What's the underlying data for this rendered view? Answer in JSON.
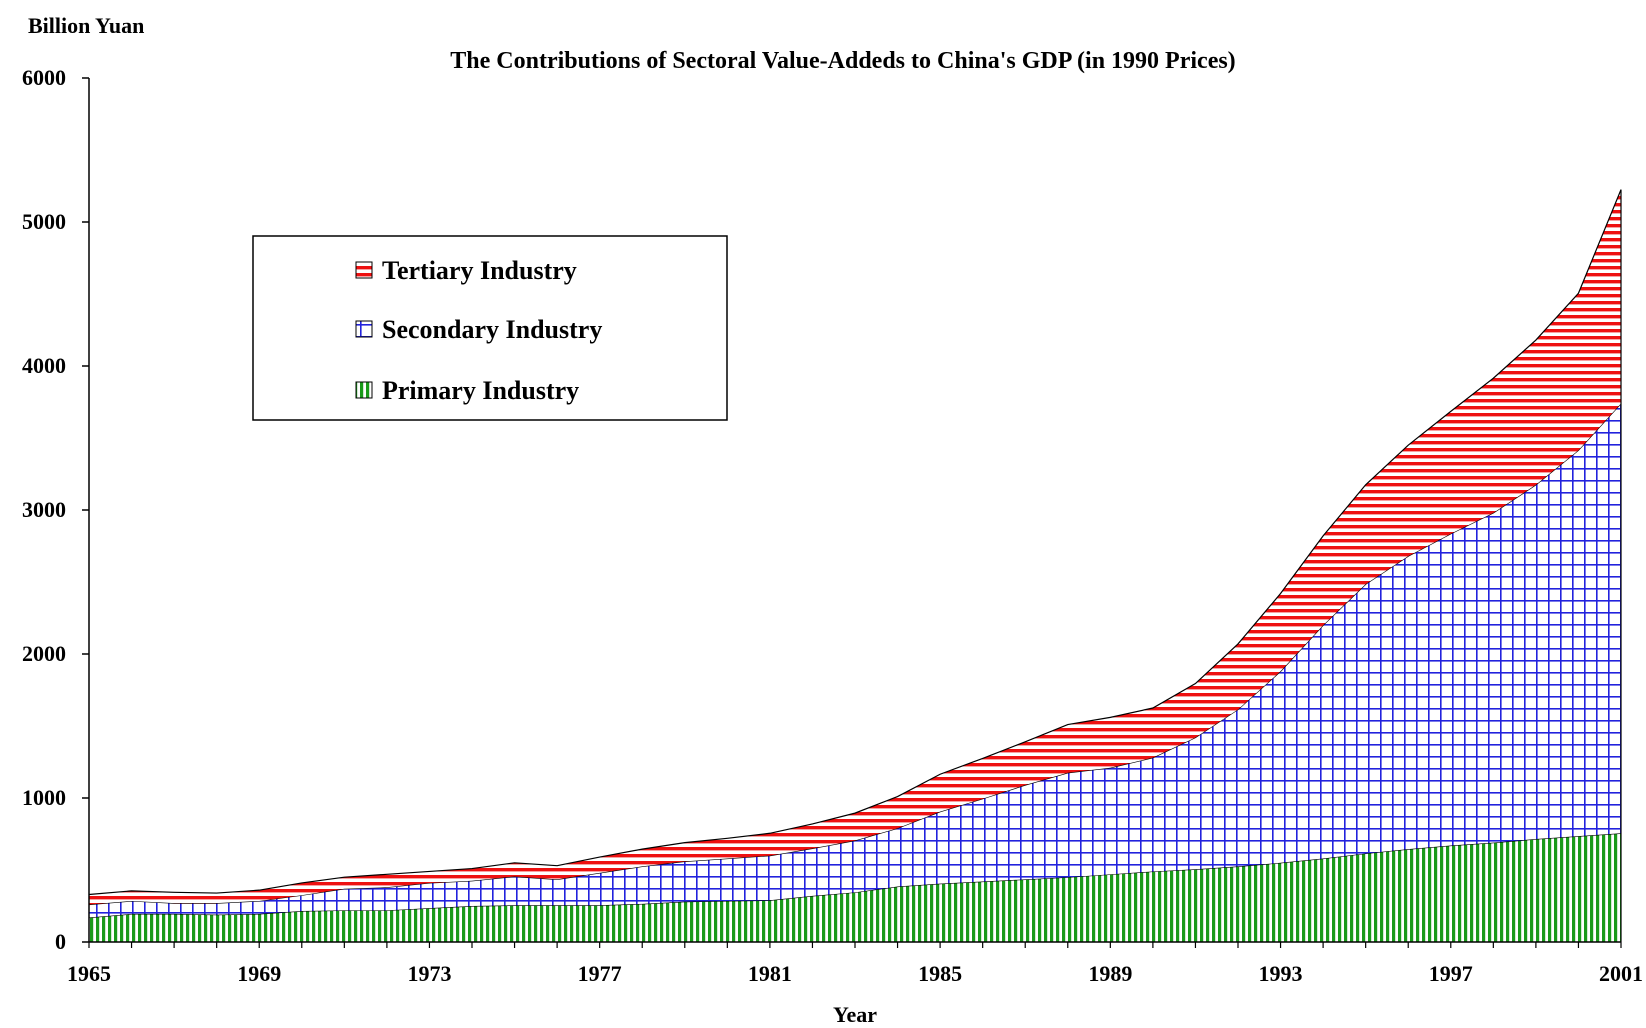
{
  "chart_data": {
    "type": "area",
    "stacked": true,
    "title": "The Contributions of Sectoral Value-Addeds to China's GDP (in 1990 Prices)",
    "xlabel": "Year",
    "ylabel": "Billion Yuan",
    "xlim": [
      1965,
      2001
    ],
    "ylim": [
      0,
      6000
    ],
    "x_ticks": [
      "1965",
      "1969",
      "1973",
      "1977",
      "1981",
      "1985",
      "1989",
      "1993",
      "1997",
      "2001"
    ],
    "y_ticks": [
      "0",
      "1000",
      "2000",
      "3000",
      "4000",
      "5000",
      "6000"
    ],
    "legend_position": "upper-left",
    "grid": false,
    "x": [
      1965,
      1966,
      1967,
      1968,
      1969,
      1970,
      1971,
      1972,
      1973,
      1974,
      1975,
      1976,
      1977,
      1978,
      1979,
      1980,
      1981,
      1982,
      1983,
      1984,
      1985,
      1986,
      1987,
      1988,
      1989,
      1990,
      1991,
      1992,
      1993,
      1994,
      1995,
      1996,
      1997,
      1998,
      1999,
      2000,
      2001
    ],
    "series": [
      {
        "name": "Primary Industry",
        "color": "#1a9a1a",
        "pattern": "vertical-stripes",
        "values": [
          170,
          195,
          195,
          190,
          195,
          215,
          220,
          220,
          235,
          250,
          255,
          255,
          255,
          265,
          280,
          285,
          290,
          320,
          345,
          385,
          405,
          420,
          435,
          450,
          470,
          490,
          505,
          525,
          550,
          580,
          615,
          645,
          670,
          690,
          715,
          735,
          755
        ]
      },
      {
        "name": "Secondary Industry",
        "color": "#2222dd",
        "pattern": "grid",
        "values": [
          90,
          90,
          75,
          80,
          90,
          110,
          150,
          160,
          175,
          175,
          200,
          180,
          225,
          260,
          280,
          295,
          310,
          330,
          360,
          405,
          500,
          575,
          655,
          725,
          740,
          790,
          915,
          1090,
          1330,
          1620,
          1870,
          2035,
          2165,
          2290,
          2460,
          2680,
          2985
        ]
      },
      {
        "name": "Tertiary Industry",
        "color": "#ee1111",
        "pattern": "horizontal-stripes",
        "values": [
          70,
          70,
          75,
          70,
          75,
          85,
          80,
          90,
          80,
          85,
          95,
          95,
          110,
          120,
          130,
          140,
          155,
          170,
          190,
          220,
          260,
          280,
          300,
          335,
          350,
          345,
          375,
          455,
          540,
          620,
          690,
          770,
          850,
          935,
          1005,
          1090,
          1485
        ]
      }
    ]
  }
}
